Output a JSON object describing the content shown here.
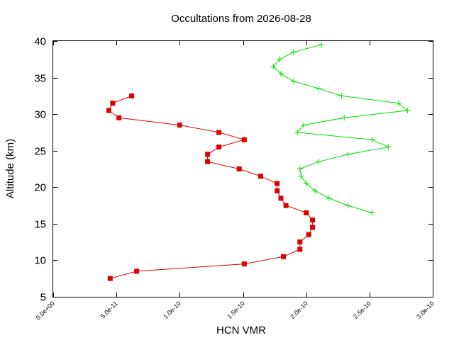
{
  "chart_data": {
    "type": "line",
    "title": "Occultations from 2026-08-28",
    "xlabel": "HCN VMR",
    "ylabel": "Altitude (km)",
    "xlim": [
      0,
      3e-10
    ],
    "ylim": [
      5,
      40
    ],
    "xticks": [
      0,
      5e-11,
      1e-10,
      1.5e-10,
      2e-10,
      2.5e-10,
      3e-10
    ],
    "xtick_labels": [
      "0.0e+00",
      "5.0e-11",
      "1.0e-10",
      "1.5e-10",
      "2.0e-10",
      "2.5e-10",
      "3.0e-10"
    ],
    "yticks": [
      5,
      10,
      15,
      20,
      25,
      30,
      35,
      40
    ],
    "ytick_labels": [
      "5",
      "10",
      "15",
      "20",
      "25",
      "30",
      "35",
      "40"
    ],
    "grid": false,
    "legend": "none",
    "series": [
      {
        "color": "#dd0000",
        "marker": "square",
        "points": [
          {
            "x": 4.5e-11,
            "y": 7.5
          },
          {
            "x": 6.6e-11,
            "y": 8.5
          },
          {
            "x": 1.51e-10,
            "y": 9.5
          },
          {
            "x": 1.82e-10,
            "y": 10.5
          },
          {
            "x": 1.95e-10,
            "y": 11.5
          },
          {
            "x": 1.95e-10,
            "y": 12.5
          },
          {
            "x": 2.02e-10,
            "y": 13.5
          },
          {
            "x": 2.05e-10,
            "y": 14.5
          },
          {
            "x": 2.05e-10,
            "y": 15.5
          },
          {
            "x": 2e-10,
            "y": 16.5
          },
          {
            "x": 1.84e-10,
            "y": 17.5
          },
          {
            "x": 1.8e-10,
            "y": 18.5
          },
          {
            "x": 1.77e-10,
            "y": 19.5
          },
          {
            "x": 1.77e-10,
            "y": 20.5
          },
          {
            "x": 1.64e-10,
            "y": 21.5
          },
          {
            "x": 1.47e-10,
            "y": 22.5
          },
          {
            "x": 1.22e-10,
            "y": 23.5
          },
          {
            "x": 1.22e-10,
            "y": 24.5
          },
          {
            "x": 1.31e-10,
            "y": 25.5
          },
          {
            "x": 1.51e-10,
            "y": 26.5
          },
          {
            "x": 1.31e-10,
            "y": 27.5
          },
          {
            "x": 1e-10,
            "y": 28.5
          },
          {
            "x": 5.2e-11,
            "y": 29.5
          },
          {
            "x": 4.4e-11,
            "y": 30.5
          },
          {
            "x": 4.7e-11,
            "y": 31.5
          },
          {
            "x": 6.2e-11,
            "y": 32.5
          }
        ]
      },
      {
        "color": "#00dd00",
        "marker": "plus",
        "points": [
          {
            "x": 2.52e-10,
            "y": 16.5
          },
          {
            "x": 2.33e-10,
            "y": 17.5
          },
          {
            "x": 2.18e-10,
            "y": 18.5
          },
          {
            "x": 2.07e-10,
            "y": 19.5
          },
          {
            "x": 2e-10,
            "y": 20.5
          },
          {
            "x": 1.96e-10,
            "y": 21.5
          },
          {
            "x": 1.95e-10,
            "y": 22.5
          },
          {
            "x": 2.1e-10,
            "y": 23.5
          },
          {
            "x": 2.33e-10,
            "y": 24.5
          },
          {
            "x": 2.65e-10,
            "y": 25.5
          },
          {
            "x": 2.52e-10,
            "y": 26.5
          },
          {
            "x": 1.93e-10,
            "y": 27.5
          },
          {
            "x": 1.98e-10,
            "y": 28.5
          },
          {
            "x": 2.3e-10,
            "y": 29.5
          },
          {
            "x": 2.8e-10,
            "y": 30.5
          },
          {
            "x": 2.73e-10,
            "y": 31.5
          },
          {
            "x": 2.28e-10,
            "y": 32.5
          },
          {
            "x": 2.1e-10,
            "y": 33.5
          },
          {
            "x": 1.9e-10,
            "y": 34.5
          },
          {
            "x": 1.8e-10,
            "y": 35.5
          },
          {
            "x": 1.74e-10,
            "y": 36.5
          },
          {
            "x": 1.79e-10,
            "y": 37.5
          },
          {
            "x": 1.9e-10,
            "y": 38.5
          },
          {
            "x": 2.12e-10,
            "y": 39.5
          }
        ]
      }
    ]
  }
}
